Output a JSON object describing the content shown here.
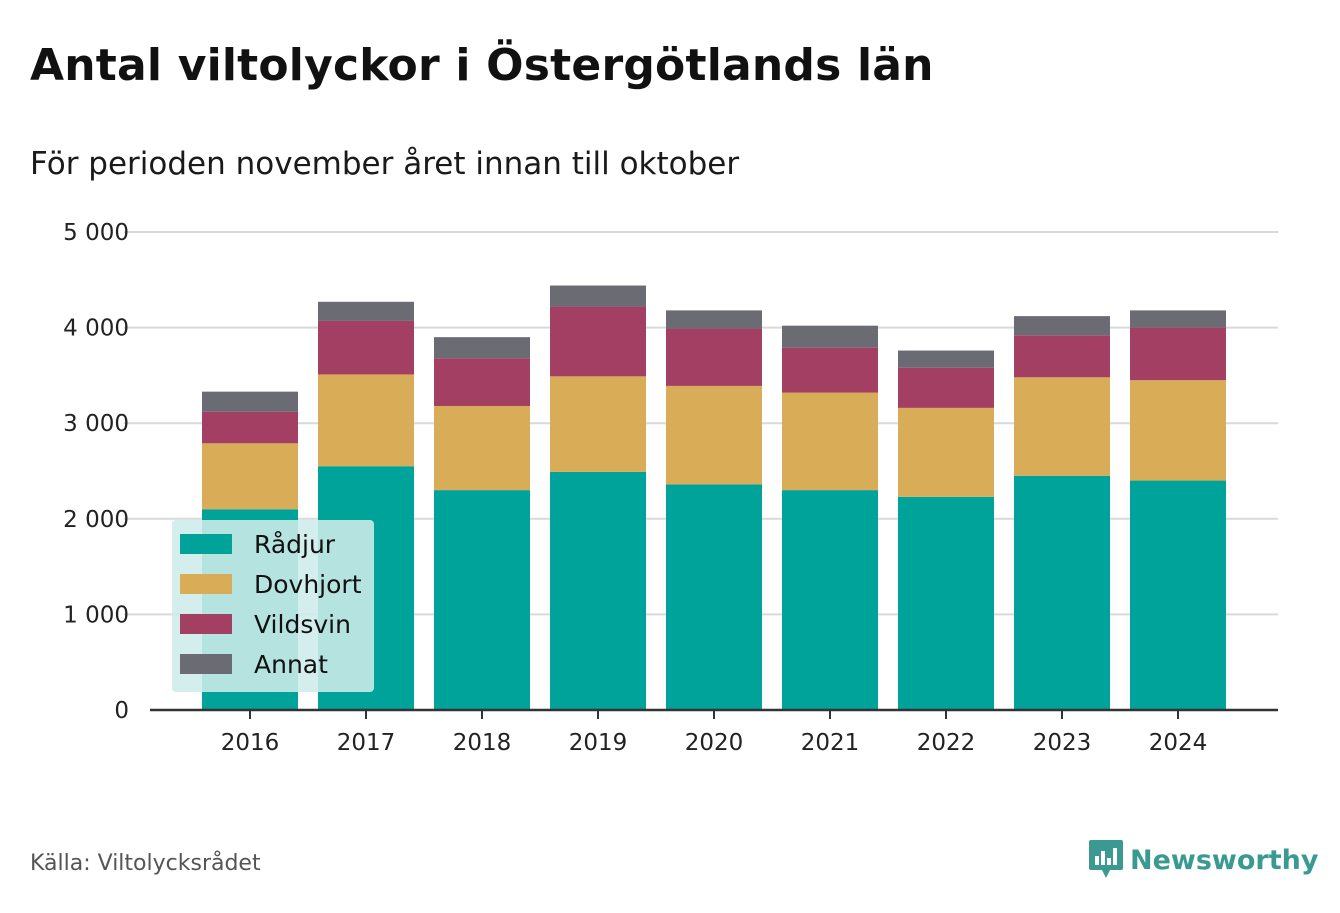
{
  "title": "Antal viltolyckor i Östergötlands län",
  "subtitle": "För perioden november året innan till oktober",
  "source": "Källa: Viltolycksrådet",
  "brand": "Newsworthy",
  "colors": {
    "radjur": "#00a39a",
    "dovhjort": "#d9ad57",
    "vildsvin": "#a33f63",
    "annat": "#6b6b74",
    "grid": "#d9d9d9",
    "axis": "#333333",
    "legend_bg": "#cdece9",
    "brand": "#3a9a92"
  },
  "chart_data": {
    "type": "bar",
    "stacked": true,
    "categories": [
      "2016",
      "2017",
      "2018",
      "2019",
      "2020",
      "2021",
      "2022",
      "2023",
      "2024"
    ],
    "series": [
      {
        "name": "Rådjur",
        "color_key": "radjur",
        "values": [
          2100,
          2550,
          2300,
          2490,
          2360,
          2300,
          2230,
          2450,
          2400
        ]
      },
      {
        "name": "Dovhjort",
        "color_key": "dovhjort",
        "values": [
          690,
          960,
          880,
          1000,
          1030,
          1020,
          930,
          1030,
          1050
        ]
      },
      {
        "name": "Vildsvin",
        "color_key": "vildsvin",
        "values": [
          330,
          560,
          500,
          730,
          600,
          470,
          420,
          440,
          550
        ]
      },
      {
        "name": "Annat",
        "color_key": "annat",
        "values": [
          210,
          200,
          220,
          220,
          190,
          230,
          180,
          200,
          180
        ]
      }
    ],
    "ylim": [
      0,
      5000
    ],
    "yticks": [
      0,
      1000,
      2000,
      3000,
      4000,
      5000
    ],
    "ytick_labels": [
      "0",
      "1 000",
      "2 000",
      "3 000",
      "4 000",
      "5 000"
    ],
    "grid": true,
    "legend_position": "bottom-left"
  }
}
